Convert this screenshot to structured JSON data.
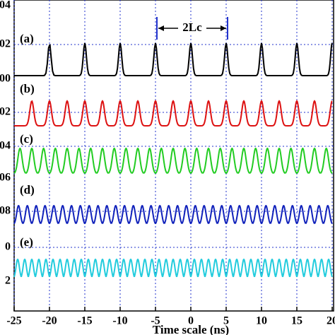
{
  "chart_data": {
    "type": "pulse",
    "xlabel": "Time scale (ns)",
    "xlim": [
      -25,
      20
    ],
    "xticks": [
      -25,
      -20,
      -15,
      -10,
      -5,
      0,
      5,
      10,
      15,
      20
    ],
    "ylim": [
      0,
      1
    ],
    "grid": true,
    "left_labels": [
      "04",
      "02",
      "00",
      "02",
      "04",
      "06",
      "08",
      "0",
      "2"
    ],
    "annotation": "2Lc",
    "series": [
      {
        "name": "(a)",
        "color": "#000000",
        "x": [
          -20,
          -15,
          -10,
          -5,
          0,
          5,
          10,
          15,
          20
        ],
        "values": [
          1,
          1,
          1,
          1,
          1,
          1,
          1,
          1,
          1
        ]
      },
      {
        "name": "(b)",
        "color": "#dd1111",
        "x": [
          -22.5,
          -20,
          -17.5,
          -15,
          -12.5,
          -10,
          -7.5,
          -5,
          -2.5,
          0,
          2.5,
          5,
          7.5,
          10,
          12.5,
          15,
          17.5,
          20
        ],
        "values": [
          1,
          1,
          1,
          1,
          1,
          1,
          1,
          1,
          1,
          1,
          1,
          1,
          1,
          1,
          1,
          1,
          1,
          1
        ]
      },
      {
        "name": "(c)",
        "color": "#22cc22",
        "x": [
          -24.17,
          -22.5,
          -20.83,
          -19.17,
          -17.5,
          -15.83,
          -14.17,
          -12.5,
          -10.83,
          -9.17,
          -7.5,
          -5.83,
          -4.17,
          -2.5,
          -0.83,
          0.83,
          2.5,
          4.17,
          5.83,
          7.5,
          9.17,
          10.83,
          12.5,
          14.17,
          15.83,
          17.5,
          19.17
        ],
        "values": [
          1,
          1,
          1,
          1,
          1,
          1,
          1,
          1,
          1,
          1,
          1,
          1,
          1,
          1,
          1,
          1,
          1,
          1,
          1,
          1,
          1,
          1,
          1,
          1,
          1,
          1,
          1
        ]
      },
      {
        "name": "(d)",
        "color": "#1122bb",
        "x": [
          -24.38,
          -23.13,
          -21.88,
          -20.63,
          -19.38,
          -18.13,
          -16.88,
          -15.63,
          -14.38,
          -13.13,
          -11.88,
          -10.63,
          -9.38,
          -8.13,
          -6.88,
          -5.63,
          -4.38,
          -3.13,
          -1.88,
          -0.63,
          0.63,
          1.88,
          3.13,
          4.38,
          5.63,
          6.88,
          8.13,
          9.38,
          10.63,
          11.88,
          13.13,
          14.38,
          15.63,
          16.88,
          18.13,
          19.38
        ],
        "values": [
          1,
          1,
          1,
          1,
          1,
          1,
          1,
          1,
          1,
          1,
          1,
          1,
          1,
          1,
          1,
          1,
          1,
          1,
          1,
          1,
          1,
          1,
          1,
          1,
          1,
          1,
          1,
          1,
          1,
          1,
          1,
          1,
          1,
          1,
          1,
          1
        ]
      },
      {
        "name": "(e)",
        "color": "#22ccdd",
        "x": [
          -24.5,
          -23.5,
          -22.5,
          -21.5,
          -20.5,
          -19.5,
          -18.5,
          -17.5,
          -16.5,
          -15.5,
          -14.5,
          -13.5,
          -12.5,
          -11.5,
          -10.5,
          -9.5,
          -8.5,
          -7.5,
          -6.5,
          -5.5,
          -4.5,
          -3.5,
          -2.5,
          -1.5,
          -0.5,
          0.5,
          1.5,
          2.5,
          3.5,
          4.5,
          5.5,
          6.5,
          7.5,
          8.5,
          9.5,
          10.5,
          11.5,
          12.5,
          13.5,
          14.5,
          15.5,
          16.5,
          17.5,
          18.5,
          19.5
        ],
        "values": [
          1,
          1,
          1,
          1,
          1,
          1,
          1,
          1,
          1,
          1,
          1,
          1,
          1,
          1,
          1,
          1,
          1,
          1,
          1,
          1,
          1,
          1,
          1,
          1,
          1,
          1,
          1,
          1,
          1,
          1,
          1,
          1,
          1,
          1,
          1,
          1,
          1,
          1,
          1,
          1,
          1,
          1,
          1,
          1,
          1
        ]
      }
    ]
  }
}
